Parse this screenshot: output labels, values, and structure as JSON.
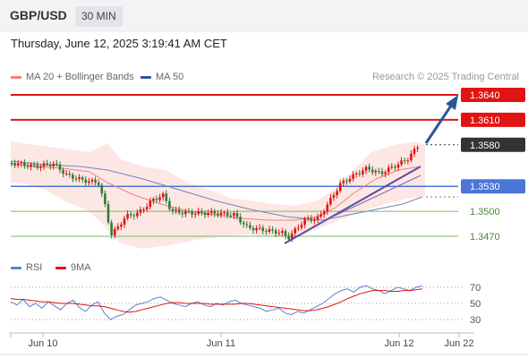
{
  "header": {
    "symbol": "GBP/USD",
    "timeframe": "30 MIN"
  },
  "datetime": "Thursday, June 12, 2025 3:19:41 AM CET",
  "legend": [
    {
      "label": "MA 20 + Bollinger Bands",
      "color": "#f08080"
    },
    {
      "label": "MA 50",
      "color": "#2f5597"
    }
  ],
  "credit": "Research © 2025 Trading Central",
  "rsi_legend": [
    {
      "label": "RSI",
      "color": "#5a7fd6"
    },
    {
      "label": "9MA",
      "color": "#e01414"
    }
  ],
  "colors": {
    "resistance": "#e01414",
    "pivot": "#4a76d9",
    "support": "#7cbb67",
    "current": "#333333",
    "up": "#e01414",
    "down": "#2e7d32",
    "arrow": "#2f5597"
  },
  "chart_data": {
    "type": "candlestick",
    "y_range": [
      1.344,
      1.3662
    ],
    "levels": [
      {
        "value": 1.364,
        "label": "1.3640",
        "kind": "resistance"
      },
      {
        "value": 1.361,
        "label": "1.3610",
        "kind": "resistance"
      },
      {
        "value": 1.358,
        "label": "1.3580",
        "kind": "current"
      },
      {
        "value": 1.353,
        "label": "1.3530",
        "kind": "pivot"
      },
      {
        "value": 1.35,
        "label": "1.3500",
        "kind": "support"
      },
      {
        "value": 1.347,
        "label": "1.3470",
        "kind": "support"
      }
    ],
    "x_labels": [
      "Jun 10",
      "Jun 11",
      "Jun 12",
      "Jun 22"
    ],
    "rsi": {
      "ticks": [
        70,
        50,
        30
      ],
      "y_range": [
        20,
        80
      ],
      "rsi_values": [
        52,
        48,
        55,
        46,
        50,
        44,
        52,
        47,
        42,
        50,
        54,
        45,
        40,
        48,
        52,
        38,
        30,
        34,
        36,
        42,
        48,
        50,
        52,
        56,
        58,
        54,
        50,
        48,
        46,
        50,
        52,
        48,
        46,
        50,
        48,
        52,
        54,
        50,
        48,
        46,
        44,
        40,
        42,
        44,
        38,
        36,
        40,
        38,
        42,
        46,
        50,
        56,
        62,
        66,
        68,
        64,
        70,
        72,
        68,
        66,
        62,
        66,
        70,
        68,
        66,
        70,
        72
      ],
      "ma_values": [
        56,
        55,
        55,
        54,
        53,
        52,
        52,
        51,
        50,
        50,
        50,
        49,
        48,
        47,
        47,
        46,
        44,
        42,
        40,
        39,
        40,
        42,
        44,
        46,
        48,
        50,
        51,
        51,
        50,
        50,
        50,
        50,
        49,
        49,
        49,
        49,
        49,
        50,
        50,
        49,
        48,
        47,
        46,
        45,
        44,
        43,
        42,
        41,
        41,
        42,
        44,
        46,
        49,
        52,
        56,
        59,
        62,
        64,
        66,
        66,
        66,
        65,
        65,
        66,
        66,
        67,
        68
      ]
    }
  }
}
